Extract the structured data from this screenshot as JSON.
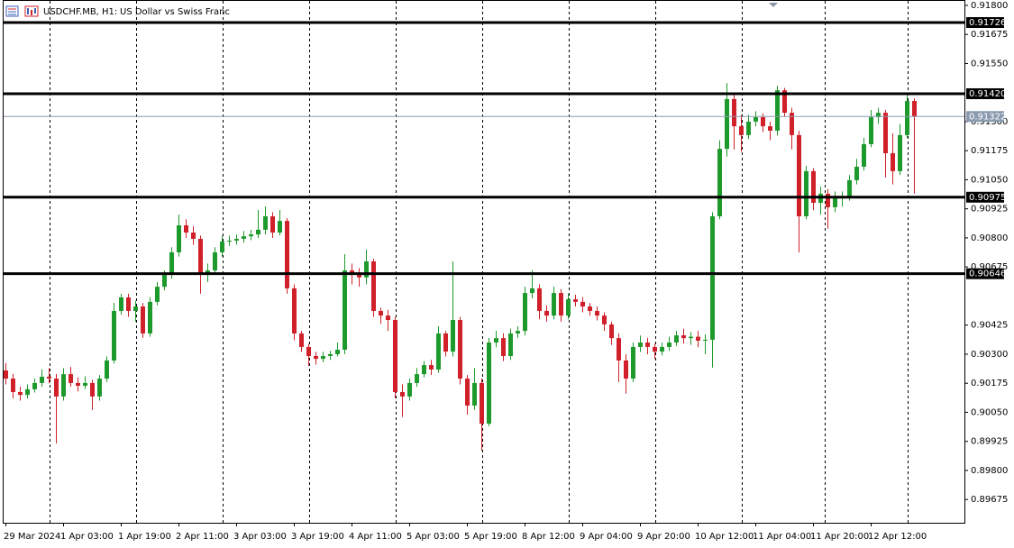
{
  "chart_data": {
    "type": "candlestick",
    "symbol": "USDCHF.MB, H1:",
    "title": "US Dollar vs Swiss Franc",
    "up_color": "#1e9a2c",
    "down_color": "#d0202a",
    "categories": [
      "29 Mar 2024",
      null,
      null,
      null,
      null,
      null,
      null,
      null,
      "1 Apr 03:00",
      null,
      null,
      null,
      null,
      null,
      null,
      null,
      "1 Apr 19:00",
      null,
      null,
      null,
      null,
      null,
      null,
      null,
      "2 Apr 11:00",
      null,
      null,
      null,
      null,
      null,
      null,
      null,
      "3 Apr 03:00",
      null,
      null,
      null,
      null,
      null,
      null,
      null,
      "3 Apr 19:00",
      null,
      null,
      null,
      null,
      null,
      null,
      null,
      "4 Apr 11:00",
      null,
      null,
      null,
      null,
      null,
      null,
      null,
      "5 Apr 03:00",
      null,
      null,
      null,
      null,
      null,
      null,
      null,
      "5 Apr 19:00",
      null,
      null,
      null,
      null,
      null,
      null,
      null,
      "8 Apr 12:00",
      null,
      null,
      null,
      null,
      null,
      null,
      null,
      "9 Apr 04:00",
      null,
      null,
      null,
      null,
      null,
      null,
      null,
      "9 Apr 20:00",
      null,
      null,
      null,
      null,
      null,
      null,
      null,
      "10 Apr 12:00",
      null,
      null,
      null,
      null,
      null,
      null,
      null,
      "11 Apr 04:00",
      null,
      null,
      null,
      null,
      null,
      null,
      null,
      "11 Apr 20:00",
      null,
      null,
      null,
      null,
      null,
      null,
      null,
      "12 Apr 12:00",
      null,
      null,
      null,
      null,
      null,
      null
    ],
    "open": [
      0.9023,
      0.90195,
      0.90137,
      0.90125,
      0.90149,
      0.90176,
      0.90203,
      0.90195,
      0.90118,
      0.90214,
      0.90176,
      0.90164,
      0.90176,
      0.90118,
      0.90195,
      0.90273,
      0.90486,
      0.90544,
      0.90486,
      0.90505,
      0.90389,
      0.90525,
      0.9059,
      0.90641,
      0.90738,
      0.90854,
      0.90823,
      0.90796,
      0.90641,
      0.9066,
      0.90738,
      0.90784,
      0.90788,
      0.90796,
      0.90807,
      0.90815,
      0.90835,
      0.90893,
      0.90823,
      0.90873,
      0.90583,
      0.90389,
      0.90331,
      0.90292,
      0.9028,
      0.90292,
      0.903,
      0.90319,
      0.9066,
      0.90641,
      0.9063,
      0.90699,
      0.90486,
      0.90466,
      0.90447,
      0.90137,
      0.90118,
      0.90176,
      0.90214,
      0.90253,
      0.90234,
      0.90389,
      0.90311,
      0.90447,
      0.90195,
      0.90079,
      0.90176,
      0.90001,
      0.9035,
      0.90369,
      0.90292,
      0.90389,
      0.904,
      0.90563,
      0.90583,
      0.90486,
      0.90466,
      0.90563,
      0.90466,
      0.90536,
      0.90525,
      0.90505,
      0.90486,
      0.90466,
      0.90428,
      0.90369,
      0.90273,
      0.90195,
      0.90331,
      0.9035,
      0.90331,
      0.90311,
      0.90331,
      0.9035,
      0.90381,
      0.90369,
      0.90375,
      0.90358,
      0.90362,
      0.90893,
      0.91183,
      0.91397,
      0.9128,
      0.91242,
      0.913,
      0.91319,
      0.9128,
      0.91261,
      0.91435,
      0.91338,
      0.91242,
      0.90893,
      0.91087,
      0.90951,
      0.9099,
      0.90932,
      0.9097,
      0.90978,
      0.91048,
      0.91106,
      0.91203,
      0.91319,
      0.91338,
      0.91164,
      0.91087,
      0.91242,
      0.91389
    ],
    "high": [
      0.90262,
      0.90215,
      0.9016,
      0.9017,
      0.90195,
      0.90235,
      0.9024,
      0.90215,
      0.9024,
      0.90245,
      0.902,
      0.90205,
      0.9019,
      0.9021,
      0.9029,
      0.9052,
      0.9056,
      0.9056,
      0.9053,
      0.9052,
      0.90545,
      0.9061,
      0.9066,
      0.9076,
      0.909,
      0.9088,
      0.9085,
      0.9081,
      0.9069,
      0.9076,
      0.9081,
      0.9081,
      0.90815,
      0.9083,
      0.90835,
      0.9092,
      0.90935,
      0.9091,
      0.9092,
      0.90885,
      0.906,
      0.904,
      0.90345,
      0.9031,
      0.9031,
      0.90315,
      0.9035,
      0.9073,
      0.9069,
      0.9067,
      0.9075,
      0.9071,
      0.905,
      0.9049,
      0.9046,
      0.9017,
      0.90195,
      0.9024,
      0.9027,
      0.90275,
      0.9042,
      0.904,
      0.90699,
      0.9046,
      0.9021,
      0.9024,
      0.90195,
      0.9037,
      0.904,
      0.9039,
      0.9041,
      0.9042,
      0.9059,
      0.9066,
      0.906,
      0.9051,
      0.9059,
      0.9058,
      0.9056,
      0.90555,
      0.90545,
      0.9052,
      0.90505,
      0.9048,
      0.9044,
      0.9039,
      0.903,
      0.9035,
      0.9038,
      0.9037,
      0.90345,
      0.9035,
      0.90375,
      0.904,
      0.9041,
      0.90395,
      0.904,
      0.90385,
      0.9091,
      0.9122,
      0.91466,
      0.9142,
      0.9133,
      0.9133,
      0.91345,
      0.91335,
      0.913,
      0.91455,
      0.91445,
      0.9136,
      0.9126,
      0.9111,
      0.911,
      0.9102,
      0.9101,
      0.91,
      0.91,
      0.9107,
      0.9114,
      0.9123,
      0.9135,
      0.9136,
      0.9135,
      0.9125,
      0.9129,
      0.91412,
      0.914
    ],
    "low": [
      0.9017,
      0.9011,
      0.901,
      0.9011,
      0.90135,
      0.9016,
      0.90175,
      0.89916,
      0.901,
      0.9016,
      0.9014,
      0.9015,
      0.9006,
      0.901,
      0.9018,
      0.9026,
      0.9047,
      0.9046,
      0.9044,
      0.9037,
      0.90375,
      0.9051,
      0.90575,
      0.90625,
      0.9072,
      0.908,
      0.9077,
      0.9056,
      0.9061,
      0.90645,
      0.9072,
      0.90765,
      0.9077,
      0.9078,
      0.9079,
      0.908,
      0.90815,
      0.908,
      0.9081,
      0.9056,
      0.9036,
      0.9031,
      0.9025,
      0.90255,
      0.90265,
      0.90275,
      0.9029,
      0.903,
      0.906,
      0.9059,
      0.906,
      0.9046,
      0.9043,
      0.904,
      0.9011,
      0.9003,
      0.901,
      0.9016,
      0.902,
      0.9021,
      0.9022,
      0.9029,
      0.9029,
      0.9017,
      0.9004,
      0.9006,
      0.89885,
      0.8999,
      0.9033,
      0.9027,
      0.90275,
      0.9037,
      0.9038,
      0.9054,
      0.9045,
      0.9044,
      0.9045,
      0.9044,
      0.9045,
      0.90505,
      0.9048,
      0.90465,
      0.90445,
      0.904,
      0.9034,
      0.9018,
      0.9013,
      0.9018,
      0.9031,
      0.903,
      0.9028,
      0.90295,
      0.90315,
      0.90335,
      0.90345,
      0.9034,
      0.9033,
      0.903,
      0.90242,
      0.9088,
      0.9115,
      0.9118,
      0.9117,
      0.91225,
      0.9128,
      0.91255,
      0.9122,
      0.9124,
      0.9132,
      0.9118,
      0.90738,
      0.9088,
      0.9092,
      0.909,
      0.9084,
      0.9091,
      0.90935,
      0.9096,
      0.9103,
      0.9109,
      0.9119,
      0.9129,
      0.9106,
      0.9103,
      0.9107,
      0.9123,
      0.9099
    ],
    "close": [
      0.90195,
      0.90137,
      0.90125,
      0.90149,
      0.90176,
      0.90203,
      0.90195,
      0.90118,
      0.90214,
      0.90176,
      0.90164,
      0.90176,
      0.90118,
      0.90195,
      0.90273,
      0.90486,
      0.90544,
      0.90486,
      0.90505,
      0.90389,
      0.90525,
      0.9059,
      0.90641,
      0.90738,
      0.90854,
      0.90823,
      0.90796,
      0.90641,
      0.9066,
      0.90738,
      0.90784,
      0.90788,
      0.90796,
      0.90807,
      0.90815,
      0.90835,
      0.90893,
      0.90823,
      0.90873,
      0.90583,
      0.90389,
      0.90331,
      0.90292,
      0.9028,
      0.90292,
      0.903,
      0.90319,
      0.9066,
      0.90641,
      0.9063,
      0.90699,
      0.90486,
      0.90466,
      0.90447,
      0.90137,
      0.90118,
      0.90176,
      0.90214,
      0.90253,
      0.90234,
      0.90389,
      0.90311,
      0.90447,
      0.90195,
      0.90079,
      0.90176,
      0.90001,
      0.9035,
      0.90369,
      0.90292,
      0.90389,
      0.904,
      0.90563,
      0.90583,
      0.90486,
      0.90466,
      0.90563,
      0.90466,
      0.90536,
      0.90525,
      0.90505,
      0.90486,
      0.90466,
      0.90428,
      0.90369,
      0.90273,
      0.90195,
      0.90331,
      0.9035,
      0.90331,
      0.90311,
      0.90331,
      0.9035,
      0.90381,
      0.90369,
      0.90375,
      0.90358,
      0.90362,
      0.90893,
      0.91183,
      0.91397,
      0.9128,
      0.91242,
      0.913,
      0.91319,
      0.9128,
      0.91261,
      0.91435,
      0.91338,
      0.91242,
      0.90893,
      0.91087,
      0.90951,
      0.9099,
      0.90932,
      0.9097,
      0.90978,
      0.91048,
      0.91106,
      0.91203,
      0.91319,
      0.91338,
      0.91164,
      0.91087,
      0.91242,
      0.91389,
      0.91322
    ],
    "ylim": [
      0.89575,
      0.91823
    ],
    "yticks": [
      {
        "value": 0.918,
        "label": "0.91800"
      },
      0.91675,
      {
        "value": 0.9155,
        "label": "0.91550"
      },
      {
        "value": 0.913,
        "label": "0.91300"
      },
      0.91175,
      {
        "value": 0.9105,
        "label": "0.91050"
      },
      0.90925,
      {
        "value": 0.908,
        "label": "0.90800"
      },
      0.90675,
      0.90425,
      {
        "value": 0.903,
        "label": "0.90300"
      },
      0.90175,
      {
        "value": 0.9005,
        "label": "0.90050"
      },
      0.89925,
      {
        "value": 0.898,
        "label": "0.89800"
      },
      0.89675
    ],
    "levels": [
      {
        "value": 0.91726,
        "label": "0.91726"
      },
      {
        "value": 0.9142,
        "label": "0.91420"
      },
      {
        "value": 0.90975,
        "label": "0.90975"
      },
      {
        "value": 0.90646,
        "label": "0.90646"
      }
    ],
    "last_price": 0.91322
  }
}
